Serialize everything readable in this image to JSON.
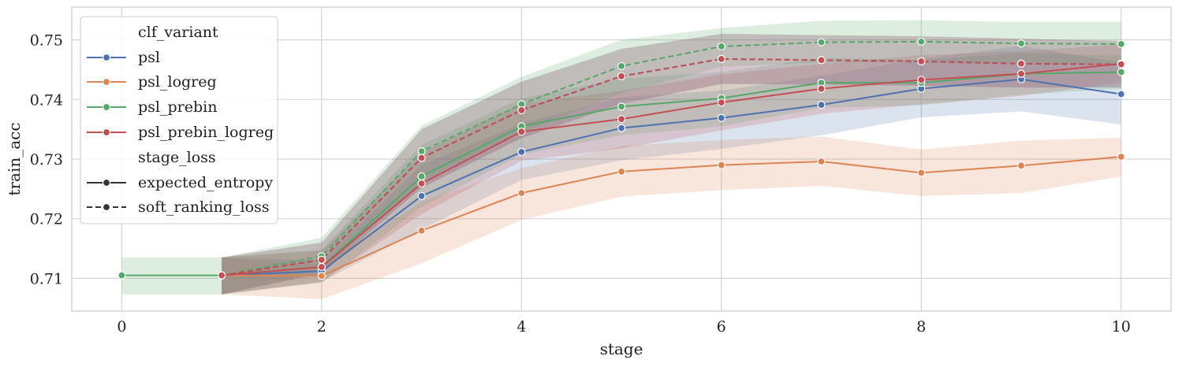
{
  "chart_data": {
    "type": "line",
    "xlabel": "stage",
    "ylabel": "train_acc",
    "xlim": [
      -0.5,
      10.5
    ],
    "ylim": [
      0.7045,
      0.7555
    ],
    "xticks": [
      0,
      2,
      4,
      6,
      8,
      10
    ],
    "yticks": [
      0.71,
      0.72,
      0.73,
      0.74,
      0.75
    ],
    "ytick_labels": [
      "0.71",
      "0.72",
      "0.73",
      "0.74",
      "0.75"
    ],
    "grid": true,
    "legend_position": "top-left",
    "legend": {
      "hue_title": "clf_variant",
      "style_title": "stage_loss",
      "hue_entries": [
        "psl",
        "psl_logreg",
        "psl_prebin",
        "psl_prebin_logreg"
      ],
      "style_entries": [
        "expected_entropy",
        "soft_ranking_loss"
      ]
    },
    "colors": {
      "psl": "#4c72b0",
      "psl_logreg": "#dd8452",
      "psl_prebin": "#55a868",
      "psl_prebin_logreg": "#c44e52"
    },
    "series": [
      {
        "name": "psl",
        "stage_loss": "expected_entropy",
        "color": "#4c72b0",
        "dash": false,
        "x": [
          1,
          2,
          3,
          4,
          5,
          6,
          7,
          8,
          9,
          10
        ],
        "y": [
          0.7105,
          0.7112,
          0.7238,
          0.7312,
          0.7352,
          0.7369,
          0.7391,
          0.7418,
          0.7434,
          0.7409
        ],
        "ci_low": [
          0.7073,
          0.7094,
          0.7182,
          0.7265,
          0.7298,
          0.7317,
          0.734,
          0.737,
          0.738,
          0.7358
        ],
        "ci_high": [
          0.7135,
          0.713,
          0.729,
          0.736,
          0.7404,
          0.7415,
          0.744,
          0.7468,
          0.749,
          0.7462
        ]
      },
      {
        "name": "psl_logreg",
        "stage_loss": "expected_entropy",
        "color": "#dd8452",
        "dash": false,
        "x": [
          1,
          2,
          3,
          4,
          5,
          6,
          7,
          8,
          9,
          10
        ],
        "y": [
          0.7105,
          0.7104,
          0.718,
          0.7243,
          0.7279,
          0.729,
          0.7296,
          0.7277,
          0.7289,
          0.7304
        ],
        "ci_low": [
          0.7073,
          0.7065,
          0.7125,
          0.7198,
          0.7237,
          0.7248,
          0.7255,
          0.7238,
          0.7243,
          0.7271
        ],
        "ci_high": [
          0.7135,
          0.7123,
          0.7228,
          0.7285,
          0.7322,
          0.7332,
          0.7338,
          0.7316,
          0.7331,
          0.7336
        ]
      },
      {
        "name": "psl_prebin",
        "stage_loss": "expected_entropy",
        "color": "#55a868",
        "dash": false,
        "x": [
          0,
          1,
          2,
          3,
          4,
          5,
          6,
          7,
          8,
          9,
          10
        ],
        "y": [
          0.7105,
          0.7105,
          0.7119,
          0.7271,
          0.7355,
          0.7388,
          0.7402,
          0.7428,
          0.7428,
          0.7443,
          0.7446
        ],
        "ci_low": [
          0.7073,
          0.7073,
          0.7092,
          0.722,
          0.7308,
          0.734,
          0.7355,
          0.7386,
          0.739,
          0.7408,
          0.7418
        ],
        "ci_high": [
          0.7135,
          0.7135,
          0.7148,
          0.7324,
          0.7402,
          0.7435,
          0.7446,
          0.747,
          0.7466,
          0.7478,
          0.7474
        ]
      },
      {
        "name": "psl_prebin_logreg",
        "stage_loss": "expected_entropy",
        "color": "#c44e52",
        "dash": false,
        "x": [
          1,
          2,
          3,
          4,
          5,
          6,
          7,
          8,
          9,
          10
        ],
        "y": [
          0.7105,
          0.7119,
          0.7259,
          0.7346,
          0.7367,
          0.7395,
          0.7418,
          0.7433,
          0.7443,
          0.746
        ],
        "ci_low": [
          0.7073,
          0.7094,
          0.7208,
          0.7297,
          0.7318,
          0.7348,
          0.7376,
          0.7392,
          0.7406,
          0.7428
        ],
        "ci_high": [
          0.7135,
          0.7146,
          0.731,
          0.7393,
          0.7415,
          0.7442,
          0.746,
          0.7474,
          0.7481,
          0.7492
        ]
      },
      {
        "name": "psl",
        "stage_loss": "soft_ranking_loss",
        "color": "#4c72b0",
        "dash": true,
        "x": [
          1,
          2,
          3,
          4,
          5,
          6,
          7,
          8,
          9,
          10
        ],
        "y": [
          0.7105,
          0.7131,
          0.7302,
          0.7382,
          0.7439,
          0.7468,
          0.7466,
          0.7464,
          0.746,
          0.7459
        ],
        "ci_low": [
          0.7073,
          0.7108,
          0.7252,
          0.7335,
          0.7393,
          0.7426,
          0.7425,
          0.7423,
          0.742,
          0.742
        ],
        "ci_high": [
          0.7135,
          0.716,
          0.735,
          0.743,
          0.7485,
          0.751,
          0.7508,
          0.7506,
          0.7502,
          0.7498
        ]
      },
      {
        "name": "psl_prebin",
        "stage_loss": "soft_ranking_loss",
        "color": "#55a868",
        "dash": true,
        "x": [
          1,
          2,
          3,
          4,
          5,
          6,
          7,
          8,
          9,
          10
        ],
        "y": [
          0.7105,
          0.7137,
          0.7313,
          0.7392,
          0.7456,
          0.7489,
          0.7496,
          0.7497,
          0.7494,
          0.7493
        ],
        "ci_low": [
          0.7073,
          0.7112,
          0.7262,
          0.7345,
          0.741,
          0.7455,
          0.7462,
          0.7463,
          0.746,
          0.7458
        ],
        "ci_high": [
          0.7135,
          0.7168,
          0.7356,
          0.7438,
          0.75,
          0.752,
          0.7532,
          0.7533,
          0.753,
          0.753
        ]
      },
      {
        "name": "psl_prebin_logreg",
        "stage_loss": "soft_ranking_loss",
        "color": "#c44e52",
        "dash": true,
        "x": [
          1,
          2,
          3,
          4,
          5,
          6,
          7,
          8,
          9,
          10
        ],
        "y": [
          0.7105,
          0.7131,
          0.7302,
          0.7382,
          0.7439,
          0.7468,
          0.7466,
          0.7464,
          0.746,
          0.7459
        ],
        "ci_low": [
          0.7073,
          0.7108,
          0.7252,
          0.7335,
          0.7393,
          0.7426,
          0.7425,
          0.7423,
          0.742,
          0.742
        ],
        "ci_high": [
          0.7135,
          0.716,
          0.735,
          0.743,
          0.7485,
          0.751,
          0.7508,
          0.7506,
          0.7502,
          0.7498
        ]
      }
    ]
  }
}
